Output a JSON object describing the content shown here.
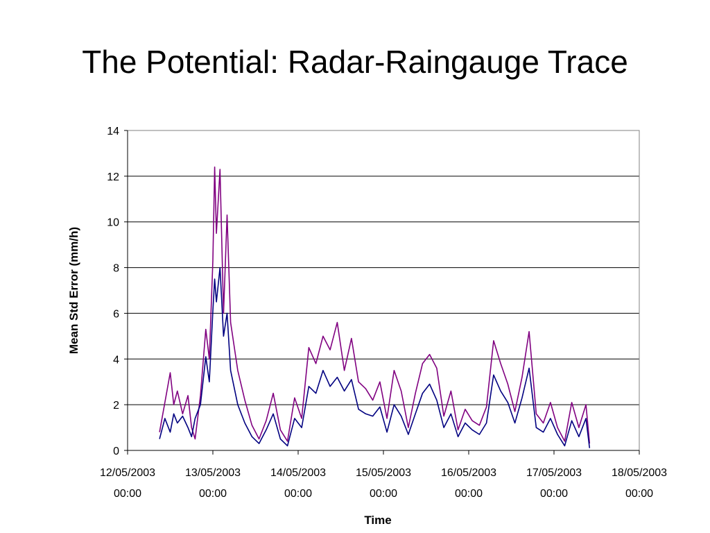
{
  "slide": {
    "title": "The Potential: Radar-Raingauge Trace"
  },
  "chart_data": {
    "type": "line",
    "title": "",
    "xlabel": "Time",
    "ylabel": "Mean Std Error (mm/h)",
    "ylim": [
      0,
      14
    ],
    "xlim": [
      "12/05/2003 00:00",
      "18/05/2003 00:00"
    ],
    "yticks": [
      0,
      2,
      4,
      6,
      8,
      10,
      12,
      14
    ],
    "xticks": [
      {
        "date": "12/05/2003",
        "time": "00:00"
      },
      {
        "date": "13/05/2003",
        "time": "00:00"
      },
      {
        "date": "14/05/2003",
        "time": "00:00"
      },
      {
        "date": "15/05/2003",
        "time": "00:00"
      },
      {
        "date": "16/05/2003",
        "time": "00:00"
      },
      {
        "date": "17/05/2003",
        "time": "00:00"
      },
      {
        "date": "18/05/2003",
        "time": "00:00"
      }
    ],
    "grid": "horizontal",
    "legend": "none",
    "colors": {
      "series_upper": "#800080",
      "series_lower": "#000080",
      "grid": "#000000"
    },
    "series": [
      {
        "color": "#800080",
        "x": [
          "12/05/2003 09:00",
          "12/05/2003 10:30",
          "12/05/2003 12:00",
          "12/05/2003 13:00",
          "12/05/2003 14:00",
          "12/05/2003 15:30",
          "12/05/2003 17:00",
          "12/05/2003 18:00",
          "12/05/2003 19:00",
          "12/05/2003 20:30",
          "12/05/2003 22:00",
          "12/05/2003 23:00",
          "13/05/2003 00:00",
          "13/05/2003 00:30",
          "13/05/2003 01:00",
          "13/05/2003 02:00",
          "13/05/2003 03:00",
          "13/05/2003 04:00",
          "13/05/2003 05:00",
          "13/05/2003 07:00",
          "13/05/2003 09:00",
          "13/05/2003 11:00",
          "13/05/2003 13:00",
          "13/05/2003 15:00",
          "13/05/2003 17:00",
          "13/05/2003 19:00",
          "13/05/2003 21:00",
          "13/05/2003 23:00",
          "14/05/2003 01:00",
          "14/05/2003 03:00",
          "14/05/2003 05:00",
          "14/05/2003 07:00",
          "14/05/2003 09:00",
          "14/05/2003 11:00",
          "14/05/2003 13:00",
          "14/05/2003 15:00",
          "14/05/2003 17:00",
          "14/05/2003 19:00",
          "14/05/2003 21:00",
          "14/05/2003 23:00",
          "15/05/2003 01:00",
          "15/05/2003 03:00",
          "15/05/2003 05:00",
          "15/05/2003 07:00",
          "15/05/2003 09:00",
          "15/05/2003 11:00",
          "15/05/2003 13:00",
          "15/05/2003 15:00",
          "15/05/2003 17:00",
          "15/05/2003 19:00",
          "15/05/2003 21:00",
          "15/05/2003 23:00",
          "16/05/2003 01:00",
          "16/05/2003 03:00",
          "16/05/2003 05:00",
          "16/05/2003 07:00",
          "16/05/2003 09:00",
          "16/05/2003 11:00",
          "16/05/2003 13:00",
          "16/05/2003 15:00",
          "16/05/2003 17:00",
          "16/05/2003 19:00",
          "16/05/2003 21:00",
          "16/05/2003 23:00",
          "17/05/2003 01:00",
          "17/05/2003 03:00",
          "17/05/2003 05:00",
          "17/05/2003 07:00",
          "17/05/2003 09:00",
          "17/05/2003 10:00"
        ],
        "values": [
          0.8,
          2.1,
          3.4,
          2.0,
          2.6,
          1.6,
          2.4,
          1.0,
          0.5,
          2.4,
          5.3,
          4.0,
          8.3,
          12.4,
          9.5,
          12.3,
          6.0,
          10.3,
          5.6,
          3.5,
          2.2,
          1.1,
          0.5,
          1.3,
          2.5,
          0.9,
          0.4,
          2.3,
          1.4,
          4.5,
          3.8,
          5.0,
          4.4,
          5.6,
          3.5,
          4.9,
          3.0,
          2.7,
          2.2,
          3.0,
          1.4,
          3.5,
          2.6,
          1.0,
          2.5,
          3.8,
          4.2,
          3.6,
          1.5,
          2.6,
          0.9,
          1.8,
          1.3,
          1.1,
          1.9,
          4.8,
          3.8,
          2.9,
          1.7,
          3.2,
          5.2,
          1.6,
          1.2,
          2.1,
          1.0,
          0.4,
          2.1,
          1.0,
          2.0,
          0.3
        ]
      },
      {
        "color": "#000080",
        "x": [
          "12/05/2003 09:00",
          "12/05/2003 10:30",
          "12/05/2003 12:00",
          "12/05/2003 13:00",
          "12/05/2003 14:00",
          "12/05/2003 15:30",
          "12/05/2003 17:00",
          "12/05/2003 18:00",
          "12/05/2003 19:00",
          "12/05/2003 20:30",
          "12/05/2003 22:00",
          "12/05/2003 23:00",
          "13/05/2003 00:00",
          "13/05/2003 00:30",
          "13/05/2003 01:00",
          "13/05/2003 02:00",
          "13/05/2003 03:00",
          "13/05/2003 04:00",
          "13/05/2003 05:00",
          "13/05/2003 07:00",
          "13/05/2003 09:00",
          "13/05/2003 11:00",
          "13/05/2003 13:00",
          "13/05/2003 15:00",
          "13/05/2003 17:00",
          "13/05/2003 19:00",
          "13/05/2003 21:00",
          "13/05/2003 23:00",
          "14/05/2003 01:00",
          "14/05/2003 03:00",
          "14/05/2003 05:00",
          "14/05/2003 07:00",
          "14/05/2003 09:00",
          "14/05/2003 11:00",
          "14/05/2003 13:00",
          "14/05/2003 15:00",
          "14/05/2003 17:00",
          "14/05/2003 19:00",
          "14/05/2003 21:00",
          "14/05/2003 23:00",
          "15/05/2003 01:00",
          "15/05/2003 03:00",
          "15/05/2003 05:00",
          "15/05/2003 07:00",
          "15/05/2003 09:00",
          "15/05/2003 11:00",
          "15/05/2003 13:00",
          "15/05/2003 15:00",
          "15/05/2003 17:00",
          "15/05/2003 19:00",
          "15/05/2003 21:00",
          "15/05/2003 23:00",
          "16/05/2003 01:00",
          "16/05/2003 03:00",
          "16/05/2003 05:00",
          "16/05/2003 07:00",
          "16/05/2003 09:00",
          "16/05/2003 11:00",
          "16/05/2003 13:00",
          "16/05/2003 15:00",
          "16/05/2003 17:00",
          "16/05/2003 19:00",
          "16/05/2003 21:00",
          "16/05/2003 23:00",
          "17/05/2003 01:00",
          "17/05/2003 03:00",
          "17/05/2003 05:00",
          "17/05/2003 07:00",
          "17/05/2003 09:00",
          "17/05/2003 10:00"
        ],
        "values": [
          0.5,
          1.4,
          0.8,
          1.6,
          1.2,
          1.5,
          1.0,
          0.6,
          1.4,
          2.0,
          4.1,
          3.0,
          6.1,
          7.5,
          6.5,
          8.0,
          5.0,
          6.0,
          3.5,
          2.0,
          1.2,
          0.6,
          0.3,
          0.9,
          1.6,
          0.5,
          0.2,
          1.4,
          1.0,
          2.8,
          2.5,
          3.5,
          2.8,
          3.2,
          2.6,
          3.1,
          1.8,
          1.6,
          1.5,
          1.9,
          0.8,
          2.0,
          1.5,
          0.7,
          1.6,
          2.5,
          2.9,
          2.2,
          1.0,
          1.6,
          0.6,
          1.2,
          0.9,
          0.7,
          1.2,
          3.3,
          2.6,
          2.1,
          1.2,
          2.3,
          3.6,
          1.0,
          0.8,
          1.4,
          0.7,
          0.2,
          1.3,
          0.6,
          1.4,
          0.1
        ]
      }
    ]
  }
}
